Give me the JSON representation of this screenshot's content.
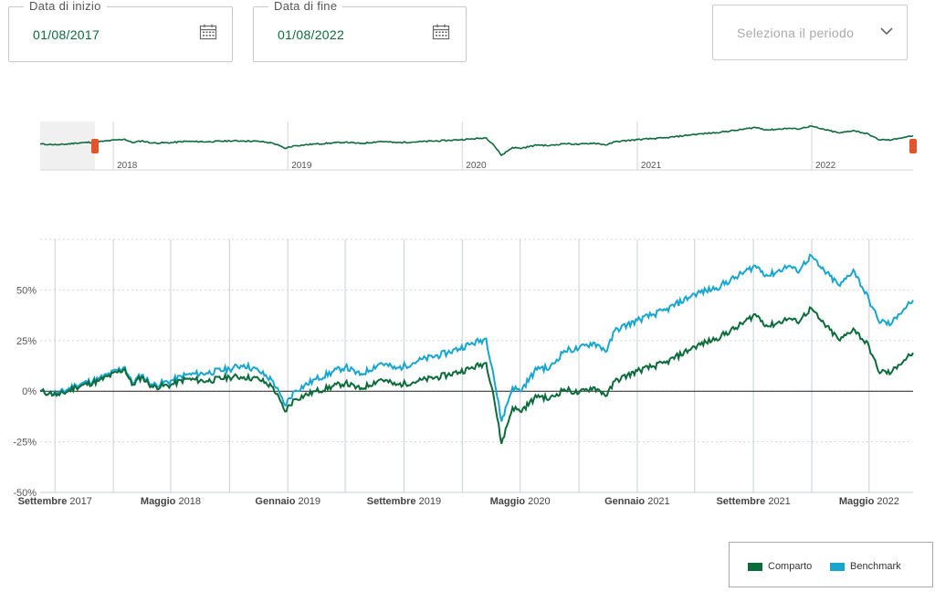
{
  "start_date": {
    "label": "Data di inizio",
    "value": "01/08/2017"
  },
  "end_date": {
    "label": "Data di fine",
    "value": "01/08/2022"
  },
  "period_select": {
    "placeholder": "Seleziona il periodo"
  },
  "navigator": {
    "year_labels": [
      "2018",
      "2019",
      "2020",
      "2021",
      "2022"
    ]
  },
  "legend": {
    "comparto": "Comparto",
    "benchmark": "Benchmark"
  },
  "colors": {
    "comparto": "#0b6b3a",
    "benchmark": "#18a6d0",
    "handle": "#e5532a"
  },
  "chart_data": {
    "type": "line",
    "x_range": [
      "2017-08-01",
      "2022-08-01"
    ],
    "ylim": [
      -50,
      75
    ],
    "y_ticks": [
      -50,
      -25,
      0,
      25,
      50
    ],
    "y_tick_labels": [
      "-50%",
      "-25%",
      "0%",
      "25%",
      "50%"
    ],
    "x_tick_labels": [
      {
        "bold": "Settembre",
        "rest": " 2017"
      },
      {
        "bold": "Maggio",
        "rest": " 2018"
      },
      {
        "bold": "Gennaio",
        "rest": " 2019"
      },
      {
        "bold": "Settembre",
        "rest": " 2019"
      },
      {
        "bold": "Maggio",
        "rest": " 2020"
      },
      {
        "bold": "Gennaio",
        "rest": " 2021"
      },
      {
        "bold": "Settembre",
        "rest": " 2021"
      },
      {
        "bold": "Maggio",
        "rest": " 2022"
      }
    ],
    "x_tick_dates": [
      "2017-09-01",
      "2018-05-01",
      "2019-01-01",
      "2019-09-01",
      "2020-05-01",
      "2021-01-01",
      "2021-09-01",
      "2022-05-01"
    ],
    "x_grid_dates": [
      "2017-09-01",
      "2018-01-01",
      "2018-05-01",
      "2018-09-01",
      "2019-01-01",
      "2019-05-01",
      "2019-09-01",
      "2020-01-01",
      "2020-05-01",
      "2020-09-01",
      "2021-01-01",
      "2021-05-01",
      "2021-09-01",
      "2022-01-01",
      "2022-05-01"
    ],
    "grid": true,
    "legend_position": "bottom-right",
    "series": [
      {
        "name": "Comparto",
        "color": "#0b6b3a",
        "points": [
          [
            "2017-08-01",
            0
          ],
          [
            "2017-08-20",
            -1
          ],
          [
            "2017-09-10",
            -2
          ],
          [
            "2017-10-15",
            2
          ],
          [
            "2017-12-01",
            5
          ],
          [
            "2018-01-25",
            11
          ],
          [
            "2018-02-09",
            3
          ],
          [
            "2018-03-01",
            7
          ],
          [
            "2018-03-25",
            2
          ],
          [
            "2018-05-01",
            3
          ],
          [
            "2018-06-01",
            6
          ],
          [
            "2018-07-15",
            5
          ],
          [
            "2018-09-01",
            7
          ],
          [
            "2018-10-01",
            7
          ],
          [
            "2018-11-01",
            6
          ],
          [
            "2018-12-01",
            2
          ],
          [
            "2018-12-26",
            -10
          ],
          [
            "2019-01-15",
            -4
          ],
          [
            "2019-03-01",
            0
          ],
          [
            "2019-05-01",
            4
          ],
          [
            "2019-06-01",
            1
          ],
          [
            "2019-07-15",
            6
          ],
          [
            "2019-08-15",
            3
          ],
          [
            "2019-10-01",
            5
          ],
          [
            "2019-12-01",
            8
          ],
          [
            "2020-01-15",
            11
          ],
          [
            "2020-02-20",
            14
          ],
          [
            "2020-03-05",
            0
          ],
          [
            "2020-03-23",
            -26
          ],
          [
            "2020-04-15",
            -8
          ],
          [
            "2020-05-01",
            -10
          ],
          [
            "2020-06-08",
            -2
          ],
          [
            "2020-07-01",
            -4
          ],
          [
            "2020-08-01",
            1
          ],
          [
            "2020-09-01",
            -1
          ],
          [
            "2020-10-01",
            2
          ],
          [
            "2020-10-30",
            -2
          ],
          [
            "2020-11-15",
            5
          ],
          [
            "2021-01-01",
            10
          ],
          [
            "2021-03-01",
            14
          ],
          [
            "2021-05-01",
            22
          ],
          [
            "2021-06-15",
            26
          ],
          [
            "2021-08-01",
            32
          ],
          [
            "2021-09-05",
            38
          ],
          [
            "2021-10-01",
            32
          ],
          [
            "2021-11-15",
            36
          ],
          [
            "2021-12-01",
            34
          ],
          [
            "2021-12-31",
            41
          ],
          [
            "2022-01-15",
            36
          ],
          [
            "2022-03-01",
            25
          ],
          [
            "2022-03-29",
            31
          ],
          [
            "2022-05-01",
            22
          ],
          [
            "2022-05-20",
            10
          ],
          [
            "2022-06-16",
            9
          ],
          [
            "2022-07-01",
            13
          ],
          [
            "2022-08-01",
            19
          ]
        ]
      },
      {
        "name": "Benchmark",
        "color": "#18a6d0",
        "points": [
          [
            "2017-08-01",
            0
          ],
          [
            "2017-08-20",
            -1
          ],
          [
            "2017-09-10",
            -1
          ],
          [
            "2017-10-15",
            3
          ],
          [
            "2017-12-01",
            6
          ],
          [
            "2018-01-25",
            12
          ],
          [
            "2018-02-09",
            4
          ],
          [
            "2018-03-01",
            8
          ],
          [
            "2018-03-25",
            3
          ],
          [
            "2018-05-01",
            5
          ],
          [
            "2018-06-01",
            8
          ],
          [
            "2018-07-15",
            9
          ],
          [
            "2018-09-01",
            11
          ],
          [
            "2018-10-01",
            13
          ],
          [
            "2018-11-01",
            10
          ],
          [
            "2018-12-01",
            5
          ],
          [
            "2018-12-26",
            -7
          ],
          [
            "2019-01-15",
            0
          ],
          [
            "2019-03-01",
            6
          ],
          [
            "2019-05-01",
            12
          ],
          [
            "2019-06-01",
            8
          ],
          [
            "2019-07-15",
            14
          ],
          [
            "2019-08-15",
            11
          ],
          [
            "2019-10-01",
            15
          ],
          [
            "2019-12-01",
            19
          ],
          [
            "2020-01-15",
            23
          ],
          [
            "2020-02-20",
            26
          ],
          [
            "2020-03-05",
            10
          ],
          [
            "2020-03-23",
            -15
          ],
          [
            "2020-04-15",
            2
          ],
          [
            "2020-05-01",
            0
          ],
          [
            "2020-06-08",
            12
          ],
          [
            "2020-07-01",
            11
          ],
          [
            "2020-08-01",
            20
          ],
          [
            "2020-09-01",
            21
          ],
          [
            "2020-10-01",
            24
          ],
          [
            "2020-10-30",
            20
          ],
          [
            "2020-11-15",
            30
          ],
          [
            "2021-01-01",
            35
          ],
          [
            "2021-03-01",
            40
          ],
          [
            "2021-05-01",
            48
          ],
          [
            "2021-06-15",
            51
          ],
          [
            "2021-08-01",
            57
          ],
          [
            "2021-09-05",
            62
          ],
          [
            "2021-10-01",
            57
          ],
          [
            "2021-11-15",
            62
          ],
          [
            "2021-12-01",
            59
          ],
          [
            "2021-12-31",
            67
          ],
          [
            "2022-01-15",
            62
          ],
          [
            "2022-03-01",
            52
          ],
          [
            "2022-03-29",
            60
          ],
          [
            "2022-05-01",
            45
          ],
          [
            "2022-05-20",
            35
          ],
          [
            "2022-06-16",
            33
          ],
          [
            "2022-07-01",
            38
          ],
          [
            "2022-08-01",
            45
          ]
        ]
      }
    ]
  }
}
